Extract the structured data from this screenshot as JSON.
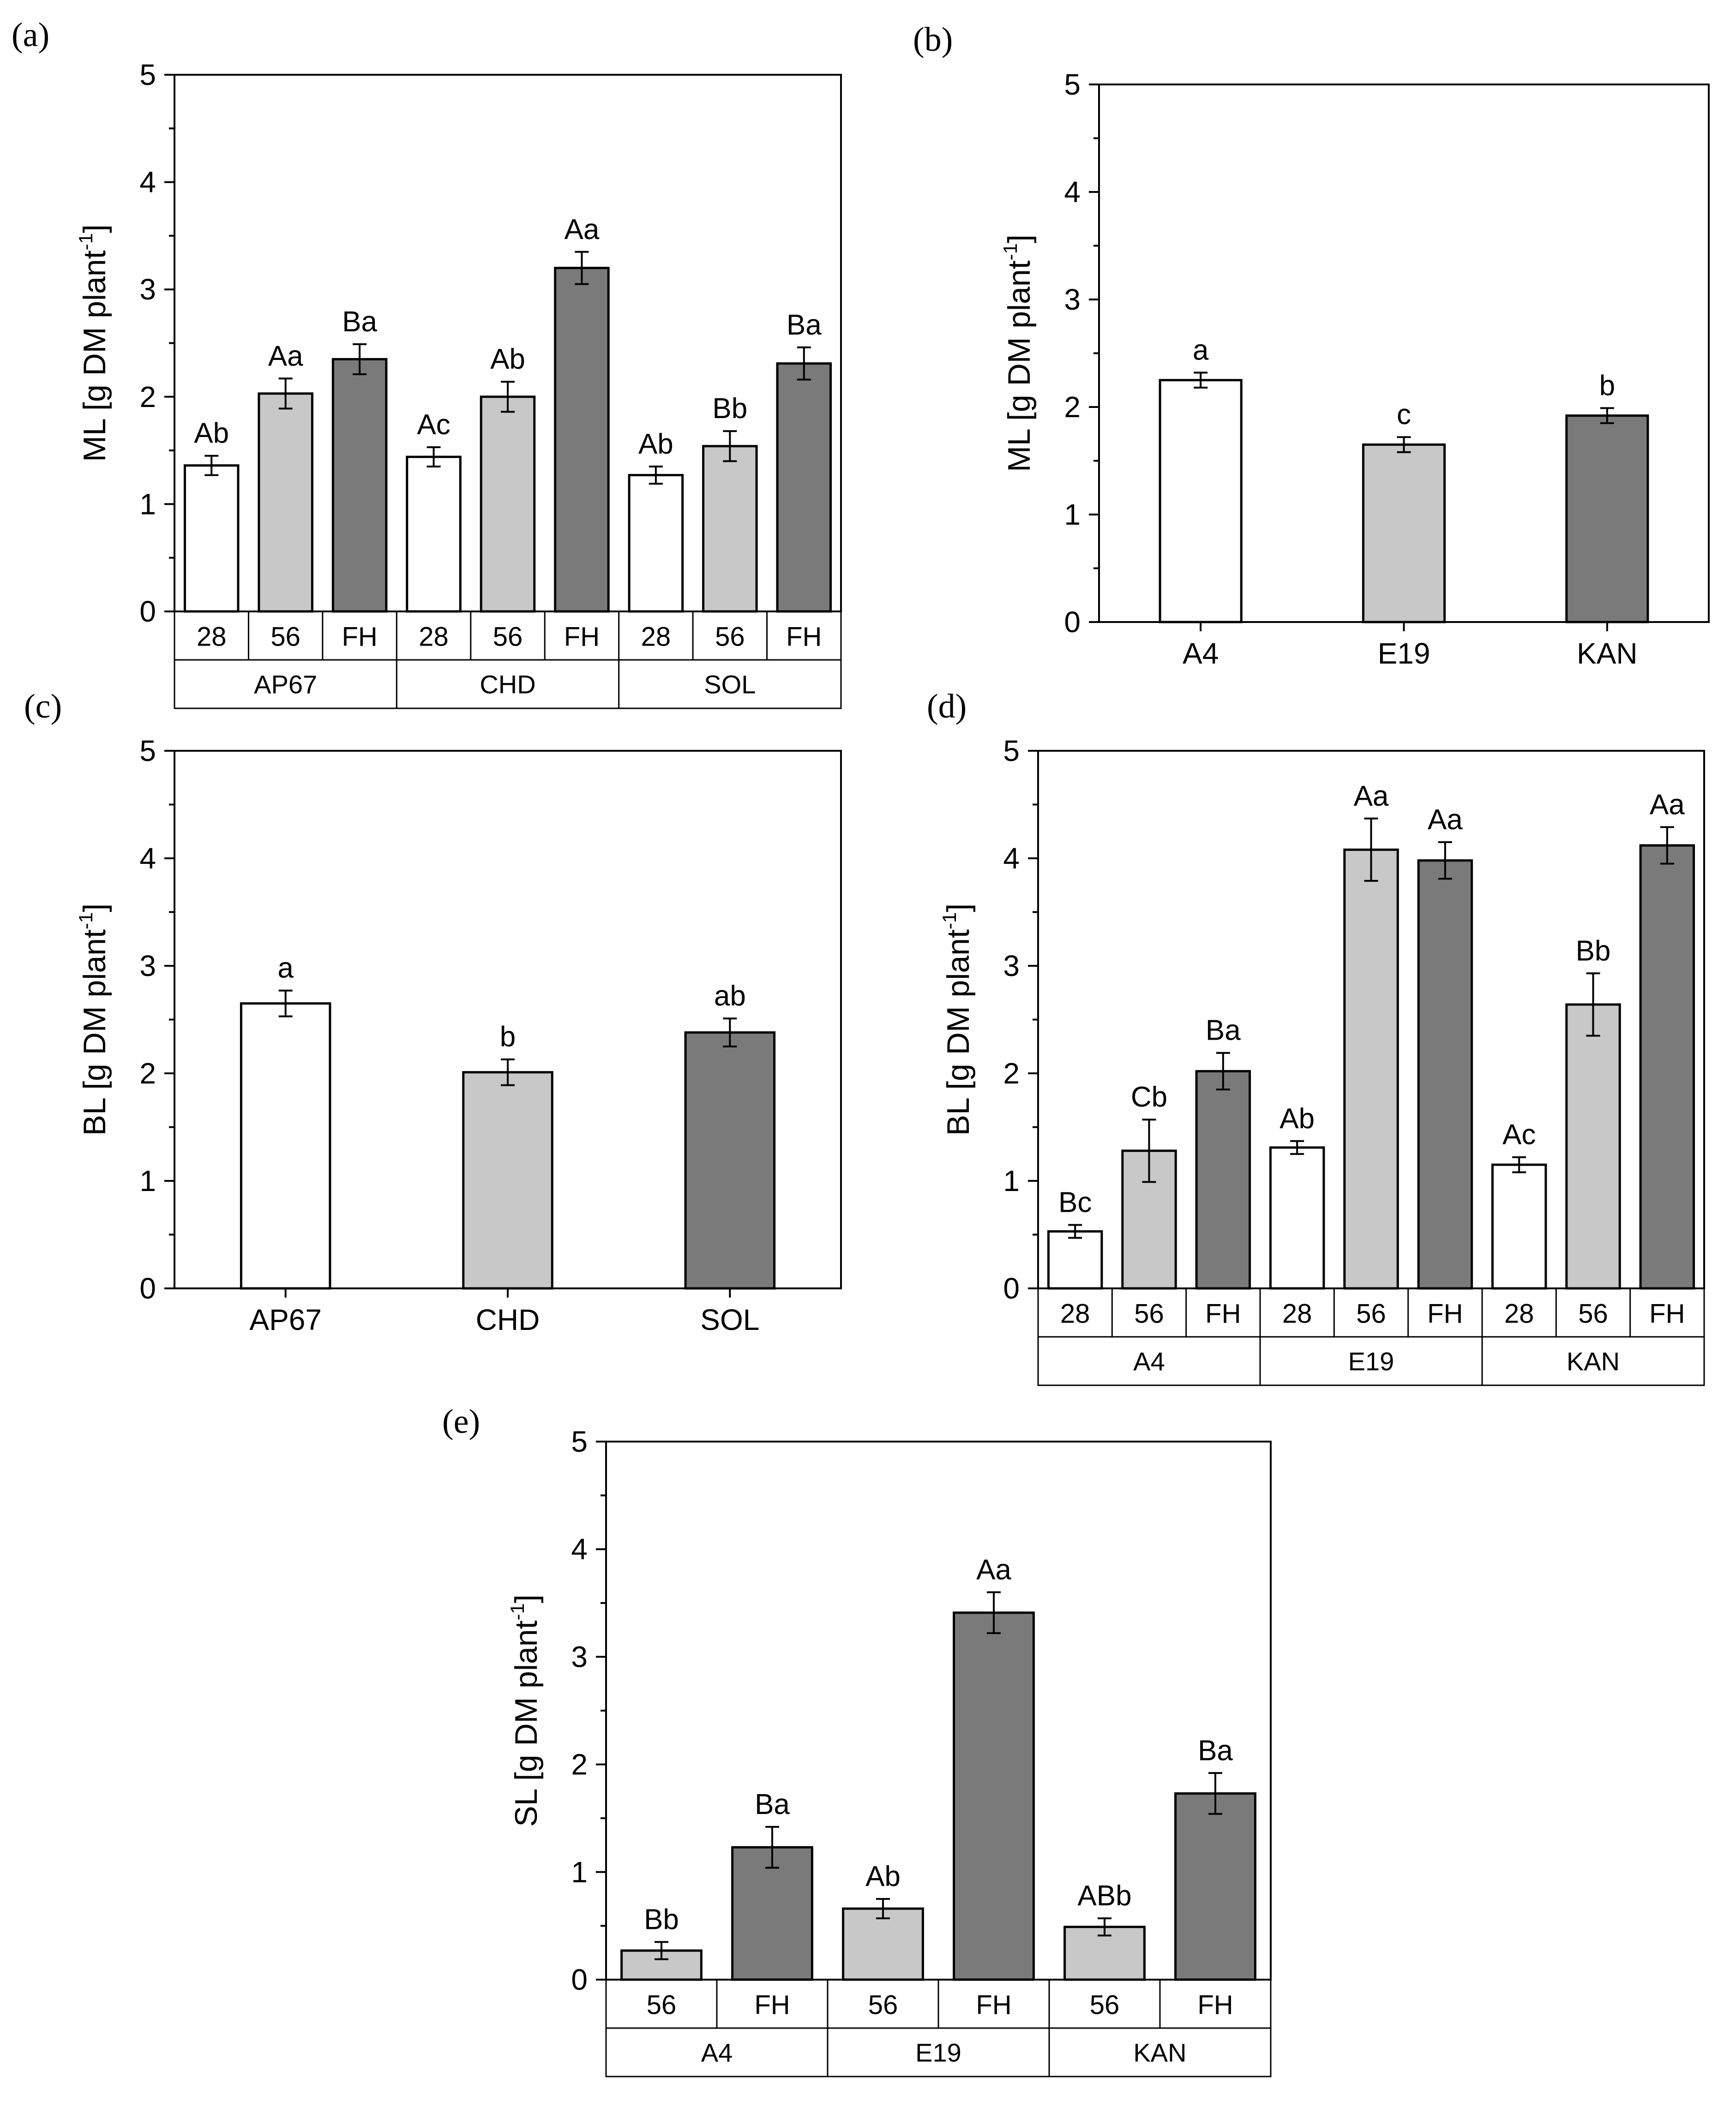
{
  "figure": {
    "panels": [
      {
        "id": "a",
        "panel_label": "(a)",
        "chart_data": {
          "type": "bar",
          "ylabel": "ML [g DM plant",
          "ylabel_sup": "-1",
          "ylabel_end": "]",
          "ylim": [
            0,
            5
          ],
          "yticks": [
            "0",
            "1",
            "2",
            "3",
            "4",
            "5"
          ],
          "layout": "grouped",
          "groups": [
            {
              "name": "AP67",
              "bars": [
                {
                  "label": "28",
                  "value": 1.36,
                  "err": 0.09,
                  "shade": "white",
                  "annotation": "Ab"
                },
                {
                  "label": "56",
                  "value": 2.03,
                  "err": 0.14,
                  "shade": "light",
                  "annotation": "Aa"
                },
                {
                  "label": "FH",
                  "value": 2.35,
                  "err": 0.14,
                  "shade": "dark",
                  "annotation": "Ba"
                }
              ]
            },
            {
              "name": "CHD",
              "bars": [
                {
                  "label": "28",
                  "value": 1.44,
                  "err": 0.09,
                  "shade": "white",
                  "annotation": "Ac"
                },
                {
                  "label": "56",
                  "value": 2.0,
                  "err": 0.14,
                  "shade": "light",
                  "annotation": "Ab"
                },
                {
                  "label": "FH",
                  "value": 3.2,
                  "err": 0.15,
                  "shade": "dark",
                  "annotation": "Aa"
                }
              ]
            },
            {
              "name": "SOL",
              "bars": [
                {
                  "label": "28",
                  "value": 1.27,
                  "err": 0.08,
                  "shade": "white",
                  "annotation": "Ab"
                },
                {
                  "label": "56",
                  "value": 1.54,
                  "err": 0.14,
                  "shade": "light",
                  "annotation": "Bb"
                },
                {
                  "label": "FH",
                  "value": 2.31,
                  "err": 0.15,
                  "shade": "dark",
                  "annotation": "Ba"
                }
              ]
            }
          ]
        }
      },
      {
        "id": "b",
        "panel_label": "(b)",
        "chart_data": {
          "type": "bar",
          "ylabel": "ML [g DM plant",
          "ylabel_sup": "-1",
          "ylabel_end": "]",
          "ylim": [
            0,
            5
          ],
          "yticks": [
            "0",
            "1",
            "2",
            "3",
            "4",
            "5"
          ],
          "layout": "simple",
          "bars": [
            {
              "label": "A4",
              "value": 2.25,
              "err": 0.07,
              "shade": "white",
              "annotation": "a"
            },
            {
              "label": "E19",
              "value": 1.65,
              "err": 0.07,
              "shade": "light",
              "annotation": "c"
            },
            {
              "label": "KAN",
              "value": 1.92,
              "err": 0.07,
              "shade": "dark",
              "annotation": "b"
            }
          ]
        }
      },
      {
        "id": "c",
        "panel_label": "(c)",
        "chart_data": {
          "type": "bar",
          "ylabel": "BL [g DM plant",
          "ylabel_sup": "-1",
          "ylabel_end": "]",
          "ylim": [
            0,
            5
          ],
          "yticks": [
            "0",
            "1",
            "2",
            "3",
            "4",
            "5"
          ],
          "layout": "simple",
          "bars": [
            {
              "label": "AP67",
              "value": 2.65,
              "err": 0.12,
              "shade": "white",
              "annotation": "a"
            },
            {
              "label": "CHD",
              "value": 2.01,
              "err": 0.12,
              "shade": "light",
              "annotation": "b"
            },
            {
              "label": "SOL",
              "value": 2.38,
              "err": 0.13,
              "shade": "dark",
              "annotation": "ab"
            }
          ]
        }
      },
      {
        "id": "d",
        "panel_label": "(d)",
        "chart_data": {
          "type": "bar",
          "ylabel": "BL [g DM plant",
          "ylabel_sup": "-1",
          "ylabel_end": "]",
          "ylim": [
            0,
            5
          ],
          "yticks": [
            "0",
            "1",
            "2",
            "3",
            "4",
            "5"
          ],
          "layout": "grouped",
          "groups": [
            {
              "name": "A4",
              "bars": [
                {
                  "label": "28",
                  "value": 0.53,
                  "err": 0.06,
                  "shade": "white",
                  "annotation": "Bc"
                },
                {
                  "label": "56",
                  "value": 1.28,
                  "err": 0.29,
                  "shade": "light",
                  "annotation": "Cb"
                },
                {
                  "label": "FH",
                  "value": 2.02,
                  "err": 0.17,
                  "shade": "dark",
                  "annotation": "Ba"
                }
              ]
            },
            {
              "name": "E19",
              "bars": [
                {
                  "label": "28",
                  "value": 1.31,
                  "err": 0.06,
                  "shade": "white",
                  "annotation": "Ab"
                },
                {
                  "label": "56",
                  "value": 4.08,
                  "err": 0.29,
                  "shade": "light",
                  "annotation": "Aa"
                },
                {
                  "label": "FH",
                  "value": 3.98,
                  "err": 0.17,
                  "shade": "dark",
                  "annotation": "Aa"
                }
              ]
            },
            {
              "name": "KAN",
              "bars": [
                {
                  "label": "28",
                  "value": 1.15,
                  "err": 0.07,
                  "shade": "white",
                  "annotation": "Ac"
                },
                {
                  "label": "56",
                  "value": 2.64,
                  "err": 0.29,
                  "shade": "light",
                  "annotation": "Bb"
                },
                {
                  "label": "FH",
                  "value": 4.12,
                  "err": 0.17,
                  "shade": "dark",
                  "annotation": "Aa"
                }
              ]
            }
          ]
        }
      },
      {
        "id": "e",
        "panel_label": "(e)",
        "chart_data": {
          "type": "bar",
          "ylabel": "SL [g DM plant",
          "ylabel_sup": "-1",
          "ylabel_end": "]",
          "ylim": [
            0,
            5
          ],
          "yticks": [
            "0",
            "1",
            "2",
            "3",
            "4",
            "5"
          ],
          "layout": "grouped",
          "groups": [
            {
              "name": "A4",
              "bars": [
                {
                  "label": "56",
                  "value": 0.27,
                  "err": 0.08,
                  "shade": "light",
                  "annotation": "Bb"
                },
                {
                  "label": "FH",
                  "value": 1.23,
                  "err": 0.19,
                  "shade": "dark",
                  "annotation": "Ba"
                }
              ]
            },
            {
              "name": "E19",
              "bars": [
                {
                  "label": "56",
                  "value": 0.66,
                  "err": 0.09,
                  "shade": "light",
                  "annotation": "Ab"
                },
                {
                  "label": "FH",
                  "value": 3.41,
                  "err": 0.19,
                  "shade": "dark",
                  "annotation": "Aa"
                }
              ]
            },
            {
              "name": "KAN",
              "bars": [
                {
                  "label": "56",
                  "value": 0.49,
                  "err": 0.08,
                  "shade": "light",
                  "annotation": "ABb"
                },
                {
                  "label": "FH",
                  "value": 1.73,
                  "err": 0.19,
                  "shade": "dark",
                  "annotation": "Ba"
                }
              ]
            }
          ]
        }
      }
    ],
    "colors": {
      "white": "#ffffff",
      "light": "#c8c8c8",
      "dark": "#7a7a7a",
      "stroke": "#000000"
    }
  }
}
